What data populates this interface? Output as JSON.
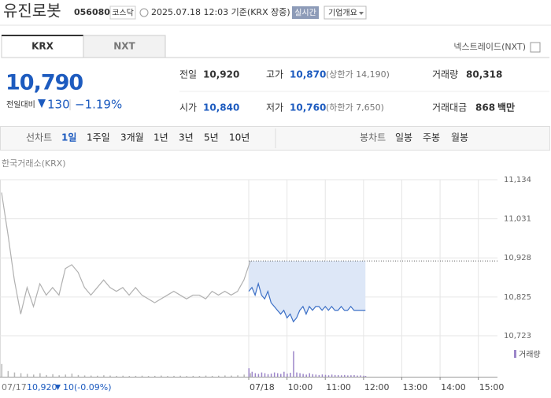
{
  "header": {
    "name": "유진로봇",
    "code": "056080",
    "market": "코스닥",
    "timestamp": "2025.07.18 12:03 기준(KRX 장중)",
    "realtime": "실시간",
    "company_info": "기업개요"
  },
  "tabs": [
    "KRX",
    "NXT"
  ],
  "nxt_link": "넥스트레이드(NXT)",
  "price": {
    "current": "10,790",
    "change_label": "전일대비",
    "change": "130",
    "change_pct": "−1.19%"
  },
  "stats": [
    {
      "label": "전일",
      "value": "10,920"
    },
    {
      "label": "고가",
      "value": "10,870",
      "note": "(상한가 14,190)"
    },
    {
      "label": "거래량",
      "value": "80,318"
    },
    {
      "label": "시가",
      "value": "10,840"
    },
    {
      "label": "저가",
      "value": "10,760",
      "note": "(하한가 7,650)"
    },
    {
      "label": "거래대금",
      "value": "868",
      "unit": "백만"
    }
  ],
  "periods": {
    "line_label": "선차트",
    "line": [
      "1일",
      "1주일",
      "3개월",
      "1년",
      "3년",
      "5년",
      "10년"
    ],
    "candle_label": "봉차트",
    "candle": [
      "일봉",
      "주봉",
      "월봉"
    ]
  },
  "footer": {
    "date": "07/17",
    "close": "10,920",
    "change": "10",
    "change_pct": "(-0.09%)"
  },
  "chart_data": {
    "type": "line",
    "source": "한국거래소(KRX)",
    "reference": 10920,
    "ylim": [
      10723,
      11134
    ],
    "yticks": [
      {
        "value": 11134,
        "label": "11,134"
      },
      {
        "value": 11031,
        "label": "11,031"
      },
      {
        "value": 10928,
        "label": "10,928"
      },
      {
        "value": 10825,
        "label": "10,825"
      },
      {
        "value": 10723,
        "label": "10,723"
      }
    ],
    "xticks": [
      {
        "value": "09:00",
        "label": "07/18"
      },
      "10:00",
      "11:00",
      "12:00",
      "13:00",
      "14:00",
      "15:00"
    ],
    "series": [
      {
        "color": "#b0b0b0",
        "x": [
          "09:00",
          "09:10",
          "09:20",
          "09:30",
          "09:40",
          "09:50",
          "10:00",
          "10:10",
          "10:20",
          "10:30",
          "10:40",
          "10:50",
          "11:00",
          "11:10",
          "11:20",
          "11:30",
          "11:40",
          "11:50",
          "12:00",
          "12:10",
          "12:20",
          "12:30",
          "12:40",
          "12:50",
          "13:00",
          "13:10",
          "13:20",
          "13:30",
          "13:40",
          "13:50",
          "14:00",
          "14:10",
          "14:20",
          "14:30",
          "14:40",
          "14:50",
          "15:00",
          "15:10",
          "15:20",
          "15:30"
        ],
        "values": [
          11100,
          10990,
          10870,
          10780,
          10850,
          10800,
          10860,
          10830,
          10850,
          10830,
          10900,
          10910,
          10890,
          10850,
          10830,
          10850,
          10870,
          10850,
          10840,
          10850,
          10830,
          10850,
          10830,
          10820,
          10810,
          10820,
          10830,
          10840,
          10830,
          10820,
          10830,
          10830,
          10820,
          10840,
          10830,
          10840,
          10830,
          10840,
          10870,
          10920
        ]
      },
      {
        "color": "#3b6fc6",
        "x": [
          "09:00",
          "09:05",
          "09:10",
          "09:15",
          "09:20",
          "09:25",
          "09:30",
          "09:35",
          "09:40",
          "09:45",
          "09:50",
          "09:55",
          "10:00",
          "10:05",
          "10:10",
          "10:15",
          "10:20",
          "10:25",
          "10:30",
          "10:35",
          "10:40",
          "10:45",
          "10:50",
          "10:55",
          "11:00",
          "11:05",
          "11:10",
          "11:15",
          "11:20",
          "11:25",
          "11:30",
          "11:35",
          "11:40",
          "11:45",
          "11:50",
          "11:55",
          "12:00",
          "12:03"
        ],
        "values": [
          10840,
          10850,
          10830,
          10860,
          10830,
          10820,
          10840,
          10810,
          10800,
          10790,
          10780,
          10790,
          10770,
          10780,
          10760,
          10770,
          10790,
          10800,
          10780,
          10800,
          10790,
          10800,
          10800,
          10790,
          10800,
          10790,
          10800,
          10790,
          10790,
          10800,
          10790,
          10790,
          10800,
          10790,
          10790,
          10790,
          10790,
          10790
        ]
      }
    ],
    "volume": {
      "name": "거래량",
      "ylim": [
        0,
        20000
      ],
      "series": [
        {
          "color": "#b8b8b8",
          "values": [
            9000,
            4000,
            3000,
            2500,
            2000,
            1500,
            2500,
            1200,
            1800,
            1000,
            1500,
            2200,
            1200,
            900,
            800,
            700,
            1000,
            800,
            600,
            700,
            500,
            600,
            700,
            500,
            600,
            800,
            500,
            600,
            700,
            500,
            600,
            500,
            800,
            600,
            700,
            900,
            800,
            1000,
            1500,
            2500
          ]
        },
        {
          "color": "#9c86c9",
          "values": [
            6000,
            3500,
            2500,
            2000,
            3000,
            2500,
            1800,
            2200,
            3000,
            2500,
            2000,
            3500,
            2200,
            2800,
            18000,
            3000,
            2500,
            2000,
            1500,
            2500,
            1800,
            1500,
            1200,
            1600,
            1300,
            1000,
            1500,
            1200,
            1100,
            1000,
            1200,
            900,
            1000,
            1100,
            800,
            900,
            700,
            500
          ]
        }
      ]
    }
  }
}
